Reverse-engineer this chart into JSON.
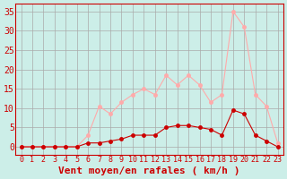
{
  "x": [
    0,
    1,
    2,
    3,
    4,
    5,
    6,
    7,
    8,
    9,
    10,
    11,
    12,
    13,
    14,
    15,
    16,
    17,
    18,
    19,
    20,
    21,
    22,
    23
  ],
  "y_moyen": [
    0,
    0,
    0,
    0,
    0,
    0,
    1,
    1,
    1.5,
    2,
    3,
    3,
    3,
    5,
    5.5,
    5.5,
    5,
    4.5,
    3,
    9.5,
    8.5,
    3,
    1.5,
    0
  ],
  "y_rafales": [
    0,
    0,
    0,
    0,
    0,
    0,
    3,
    10.5,
    8.5,
    11.5,
    13.5,
    15,
    13.5,
    18.5,
    16,
    18.5,
    16,
    11.5,
    13.5,
    35,
    31,
    13.5,
    10.5,
    1
  ],
  "bg_color": "#cceee8",
  "grid_color": "#aaaaaa",
  "line_color_moyen": "#cc0000",
  "line_color_rafales": "#ffaaaa",
  "xlabel": "Vent moyen/en rafales ( km/h )",
  "ylabel_ticks": [
    0,
    5,
    10,
    15,
    20,
    25,
    30,
    35
  ],
  "xlim": [
    -0.5,
    23.5
  ],
  "ylim": [
    -2,
    37
  ],
  "tick_color": "#cc0000",
  "label_color": "#cc0000",
  "axis_fontsize": 7
}
